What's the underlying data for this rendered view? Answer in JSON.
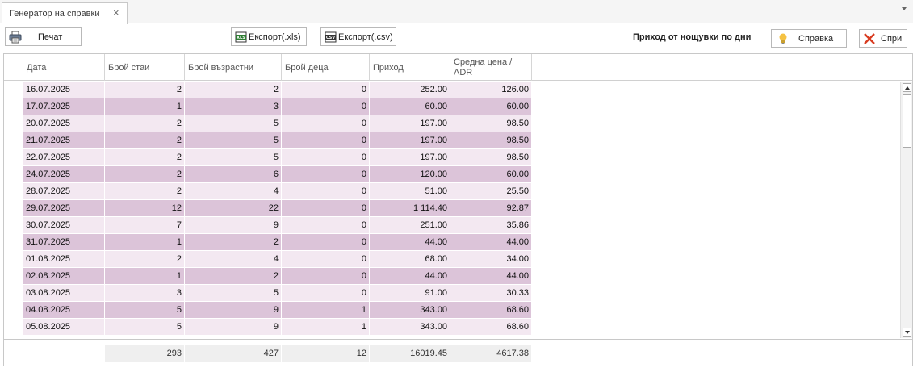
{
  "tab": {
    "title": "Генератор на справки",
    "close_glyph": "×"
  },
  "toolbar": {
    "print_label": "Печат",
    "export_xls_label": "Експорт(.xls)",
    "export_csv_label": "Експорт(.csv)",
    "report_title": "Приход от нощувки по дни",
    "help_label": "Справка",
    "close_label": "Спри"
  },
  "colors": {
    "row_light": "#f3e8f1",
    "row_dark": "#dcc4d9"
  },
  "grid": {
    "columns": [
      {
        "label": "Дата"
      },
      {
        "label": "Брой стаи"
      },
      {
        "label": "Брой възрастни"
      },
      {
        "label": "Брой деца"
      },
      {
        "label": "Приход"
      },
      {
        "label": "Средна цена / ADR"
      }
    ],
    "rows": [
      [
        "16.07.2025",
        "2",
        "2",
        "0",
        "252.00",
        "126.00"
      ],
      [
        "17.07.2025",
        "1",
        "3",
        "0",
        "60.00",
        "60.00"
      ],
      [
        "20.07.2025",
        "2",
        "5",
        "0",
        "197.00",
        "98.50"
      ],
      [
        "21.07.2025",
        "2",
        "5",
        "0",
        "197.00",
        "98.50"
      ],
      [
        "22.07.2025",
        "2",
        "5",
        "0",
        "197.00",
        "98.50"
      ],
      [
        "24.07.2025",
        "2",
        "6",
        "0",
        "120.00",
        "60.00"
      ],
      [
        "28.07.2025",
        "2",
        "4",
        "0",
        "51.00",
        "25.50"
      ],
      [
        "29.07.2025",
        "12",
        "22",
        "0",
        "1 114.40",
        "92.87"
      ],
      [
        "30.07.2025",
        "7",
        "9",
        "0",
        "251.00",
        "35.86"
      ],
      [
        "31.07.2025",
        "1",
        "2",
        "0",
        "44.00",
        "44.00"
      ],
      [
        "01.08.2025",
        "2",
        "4",
        "0",
        "68.00",
        "34.00"
      ],
      [
        "02.08.2025",
        "1",
        "2",
        "0",
        "44.00",
        "44.00"
      ],
      [
        "03.08.2025",
        "3",
        "5",
        "0",
        "91.00",
        "30.33"
      ],
      [
        "04.08.2025",
        "5",
        "9",
        "1",
        "343.00",
        "68.60"
      ],
      [
        "05.08.2025",
        "5",
        "9",
        "1",
        "343.00",
        "68.60"
      ]
    ],
    "totals": [
      "293",
      "427",
      "12",
      "16019.45",
      "4617.38"
    ]
  }
}
